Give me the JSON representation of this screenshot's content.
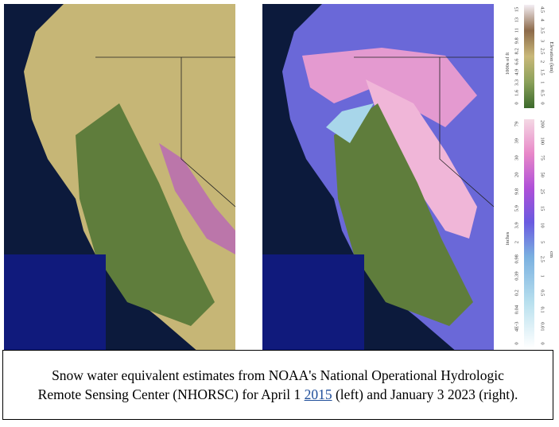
{
  "elevation_legend": {
    "left_title": "1000s of ft",
    "right_title": "Elevation (km)",
    "left_labels": [
      "15",
      "13",
      "11",
      "9.8",
      "8.2",
      "6.6",
      "4.9",
      "3.3",
      "1.6",
      "0"
    ],
    "right_labels": [
      "4.5",
      "4",
      "3.5",
      "3",
      "2.5",
      "2",
      "1.5",
      "1",
      "0.5",
      "0"
    ]
  },
  "snow_legend": {
    "left_title": "inches",
    "right_title": "cm",
    "left_labels": [
      "79",
      "39",
      "30",
      "20",
      "9.8",
      "5.9",
      "3.9",
      "2",
      "0.98",
      "0.39",
      "0.2",
      "0.04",
      "4E-3",
      "0"
    ],
    "right_labels": [
      "200",
      "100",
      "75",
      "50",
      "25",
      "15",
      "10",
      "5",
      "2.5",
      "1",
      "0.5",
      "0.1",
      "0.01",
      "0"
    ]
  },
  "caption": {
    "before": "Snow water equivalent estimates from NOAA's National Operational Hydrologic Remote Sensing Center (NHORSC) for April 1",
    "link": "2015",
    "after": "(left) and January 3 2023 (right)."
  }
}
